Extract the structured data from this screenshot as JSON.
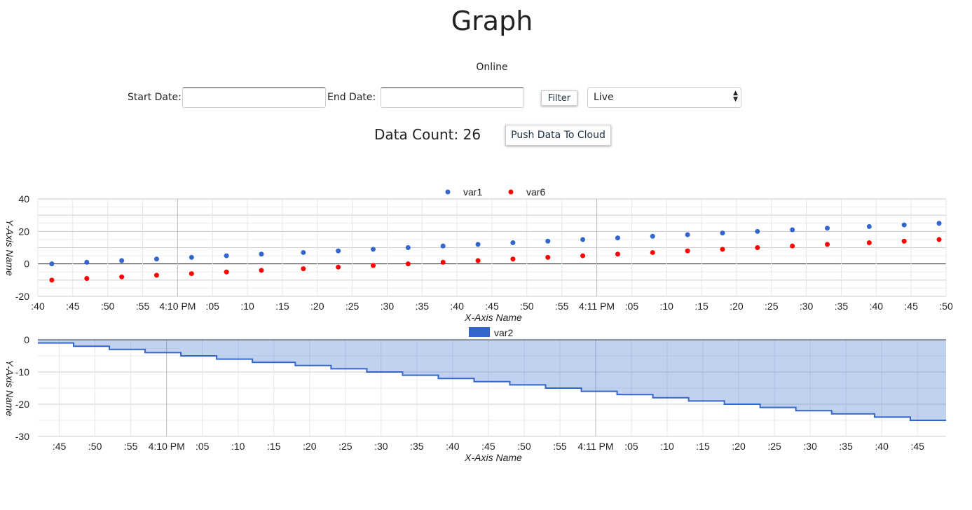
{
  "header": {
    "title": "Graph",
    "status": "Online"
  },
  "filters": {
    "start_label": "Start Date:",
    "start_value": "",
    "end_label": "End Date:",
    "end_value": "",
    "filter_button": "Filter",
    "mode_selected": "Live"
  },
  "summary": {
    "count_label": "Data Count: 26",
    "push_button": "Push Data To Cloud"
  },
  "chart_data": [
    {
      "type": "scatter",
      "xlabel": "X-Axis Name",
      "ylabel": "Y-Axis Name",
      "ylim": [
        -20,
        40
      ],
      "yticks": [
        40,
        20,
        0,
        -20
      ],
      "xlim_seconds_after_4_09_00_PM": [
        40,
        170
      ],
      "xtick_labels": [
        ":40",
        ":45",
        ":50",
        ":55",
        "4:10 PM",
        ":05",
        ":10",
        ":15",
        ":20",
        ":25",
        ":30",
        ":35",
        ":40",
        ":45",
        ":50",
        ":55",
        "4:11 PM",
        ":05",
        ":10",
        ":15",
        ":20",
        ":25",
        ":30",
        ":35",
        ":40",
        ":45",
        ":50"
      ],
      "grid": true,
      "legend": "top",
      "x_seconds_after_4_09_00_PM": [
        42,
        47,
        52,
        57,
        62,
        67,
        72,
        78,
        83,
        88,
        93,
        98,
        103,
        108,
        113,
        118,
        123,
        128,
        133,
        138,
        143,
        148,
        153,
        159,
        164,
        169
      ],
      "series": [
        {
          "name": "var1",
          "color": "#3366cc",
          "values": [
            0,
            1,
            2,
            3,
            4,
            5,
            6,
            7,
            8,
            9,
            10,
            11,
            12,
            13,
            14,
            15,
            16,
            17,
            18,
            19,
            20,
            21,
            22,
            23,
            24,
            25
          ]
        },
        {
          "name": "var6",
          "color": "#ff0000",
          "values": [
            -10,
            -9,
            -8,
            -7,
            -6,
            -5,
            -4,
            -3,
            -2,
            -1,
            0,
            1,
            2,
            3,
            4,
            5,
            6,
            7,
            8,
            9,
            10,
            11,
            12,
            13,
            14,
            15
          ]
        }
      ]
    },
    {
      "type": "area",
      "stepped": true,
      "xlabel": "X-Axis Name",
      "ylabel": "Y-Axis Name",
      "ylim": [
        -30,
        0
      ],
      "yticks": [
        0,
        -10,
        -20,
        -30
      ],
      "xlim_seconds_after_4_09_00_PM": [
        42,
        169
      ],
      "xtick_labels": [
        ":45",
        ":50",
        ":55",
        "4:10 PM",
        ":05",
        ":10",
        ":15",
        ":20",
        ":25",
        ":30",
        ":35",
        ":40",
        ":45",
        ":50",
        ":55",
        "4:11 PM",
        ":05",
        ":10",
        ":15",
        ":20",
        ":25",
        ":30",
        ":35",
        ":40",
        ":45"
      ],
      "grid": true,
      "legend": "top",
      "x_seconds_after_4_09_00_PM": [
        42,
        47,
        52,
        57,
        62,
        67,
        72,
        78,
        83,
        88,
        93,
        98,
        103,
        108,
        113,
        118,
        123,
        128,
        133,
        138,
        143,
        148,
        153,
        159,
        164,
        169
      ],
      "series": [
        {
          "name": "var2",
          "color": "#3366cc",
          "values": [
            -1,
            -2,
            -3,
            -4,
            -5,
            -6,
            -7,
            -8,
            -9,
            -10,
            -11,
            -12,
            -13,
            -14,
            -15,
            -16,
            -17,
            -18,
            -19,
            -20,
            -21,
            -22,
            -23,
            -24,
            -25,
            -26
          ]
        }
      ]
    }
  ]
}
